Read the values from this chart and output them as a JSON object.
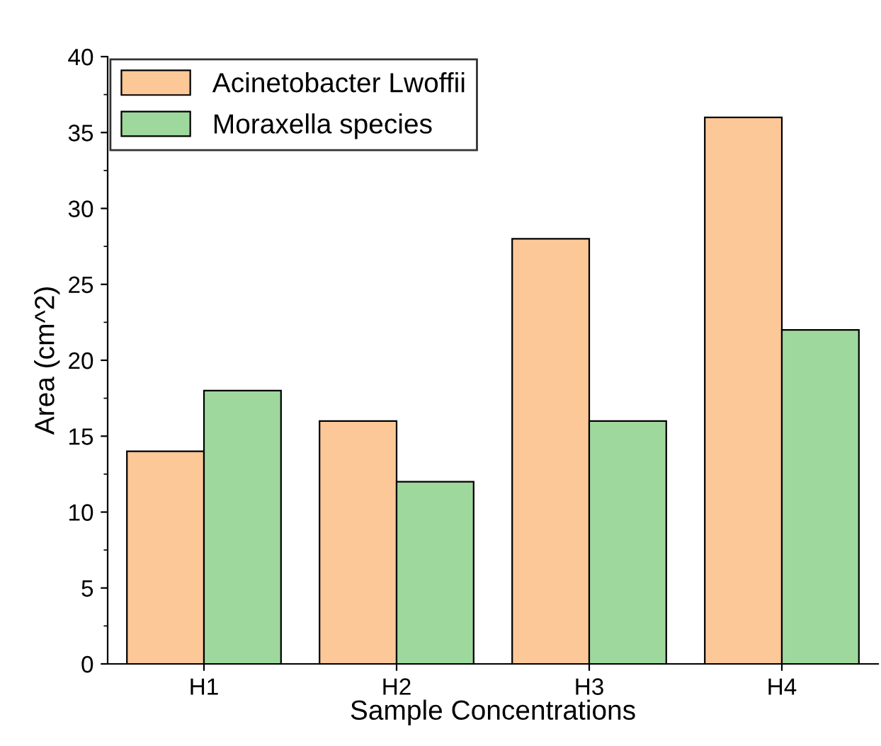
{
  "chart_data": {
    "type": "bar",
    "xlabel": "Sample Concentrations",
    "ylabel": "Area (cm^2)",
    "categories": [
      "H1",
      "H2",
      "H3",
      "H4"
    ],
    "series": [
      {
        "name": "Acinetobacter Lwoffii",
        "color": "#fdc898",
        "values": [
          14,
          16,
          28,
          36
        ]
      },
      {
        "name": "Moraxella species",
        "color": "#9fd89d",
        "values": [
          18,
          12,
          16,
          22
        ]
      }
    ],
    "ylim": [
      0,
      40
    ],
    "yticks": [
      0,
      5,
      10,
      15,
      20,
      25,
      30,
      35,
      40
    ],
    "legend": "top left",
    "grid": false
  }
}
